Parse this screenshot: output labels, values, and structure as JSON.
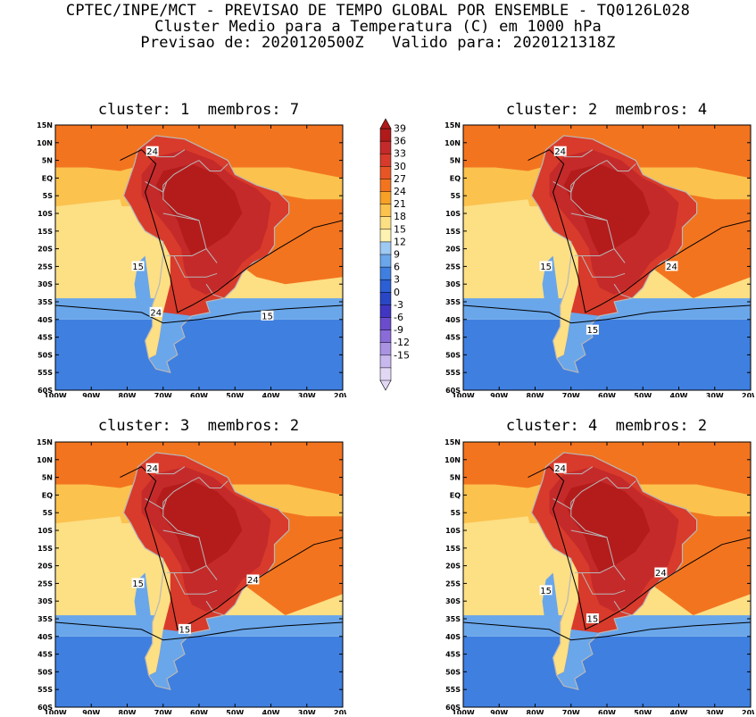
{
  "header": {
    "line1": "CPTEC/INPE/MCT - PREVISAO DE TEMPO GLOBAL POR ENSEMBLE - TQ0126L028",
    "line2": "Cluster Medio para a Temperatura (C) em 1000 hPa",
    "line3": "Previsao de: 2020120500Z   Valido para: 2020121318Z"
  },
  "panels": [
    {
      "title": "cluster: 1  membros: 7",
      "contour_labels": [
        "24",
        "15",
        "15",
        "24"
      ]
    },
    {
      "title": "cluster: 2  membros: 4",
      "contour_labels": [
        "24",
        "15",
        "24",
        "15"
      ]
    },
    {
      "title": "cluster: 3  membros: 2",
      "contour_labels": [
        "24",
        "15",
        "24",
        "15"
      ]
    },
    {
      "title": "cluster: 4  membros: 2",
      "contour_labels": [
        "24",
        "15",
        "24",
        "15"
      ]
    }
  ],
  "axes": {
    "lat_labels": [
      "15N",
      "10N",
      "5N",
      "EQ",
      "5S",
      "10S",
      "15S",
      "20S",
      "25S",
      "30S",
      "35S",
      "40S",
      "45S",
      "50S",
      "55S",
      "60S"
    ],
    "lon_labels": [
      "100W",
      "90W",
      "80W",
      "70W",
      "60W",
      "50W",
      "40W",
      "30W",
      "20W"
    ],
    "lat_range": [
      -60,
      15
    ],
    "lon_range": [
      -100,
      -20
    ]
  },
  "colorbar": {
    "labels": [
      "39",
      "36",
      "33",
      "30",
      "27",
      "24",
      "21",
      "18",
      "15",
      "12",
      "9",
      "6",
      "3",
      "0",
      "-3",
      "-6",
      "-9",
      "-12",
      "-15"
    ],
    "colors": [
      "#b01a1a",
      "#c52a2a",
      "#d83b2b",
      "#e85525",
      "#f3741f",
      "#f7a226",
      "#fbc24e",
      "#fddf84",
      "#fdf2b0",
      "#9ec9f2",
      "#6aa6ea",
      "#3f7fe0",
      "#2b5fd3",
      "#2947c4",
      "#4136c2",
      "#6a4ccd",
      "#8a6cd8",
      "#a993e2",
      "#c8b8ee",
      "#e2d8f6"
    ],
    "units": "C"
  },
  "colors": {
    "ocean_north": "#f3741f",
    "ocean_mid": "#fbc24e",
    "ocean_cool": "#fddf84",
    "ocean_blue": "#6aa6ea",
    "ocean_deep": "#3f7fe0",
    "land_hot": "#d83b2b",
    "land_hotter": "#b01a1a",
    "border": "#b8b8b8",
    "contour": "#000000"
  }
}
